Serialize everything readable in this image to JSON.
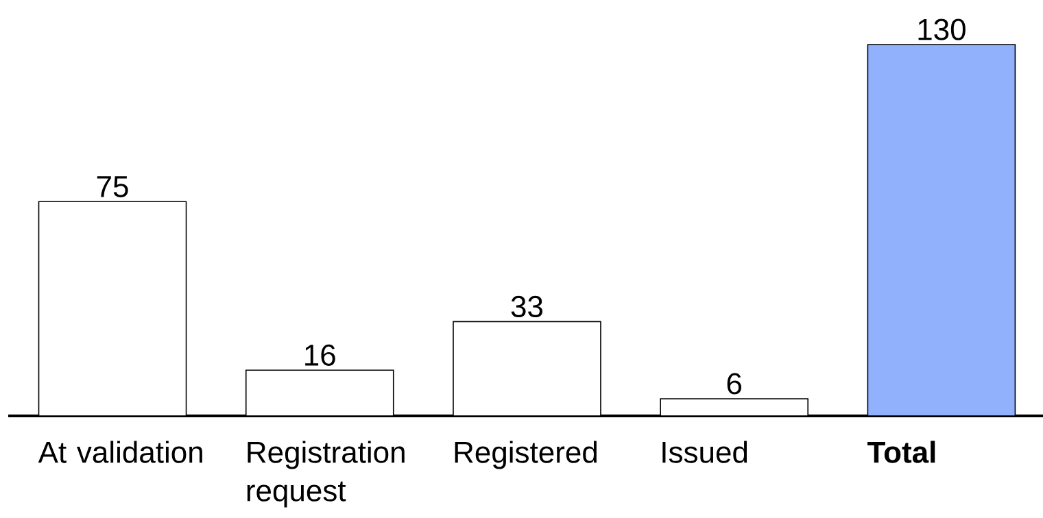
{
  "chart_data": {
    "type": "bar",
    "categories": [
      "At validation",
      "Registration request",
      "Registered",
      "Issued",
      "Total"
    ],
    "values": [
      75,
      16,
      33,
      6,
      130
    ],
    "colors": [
      "#ffffff",
      "#ffffff",
      "#ffffff",
      "#ffffff",
      "#92b1fc"
    ],
    "data_labels": true
  }
}
